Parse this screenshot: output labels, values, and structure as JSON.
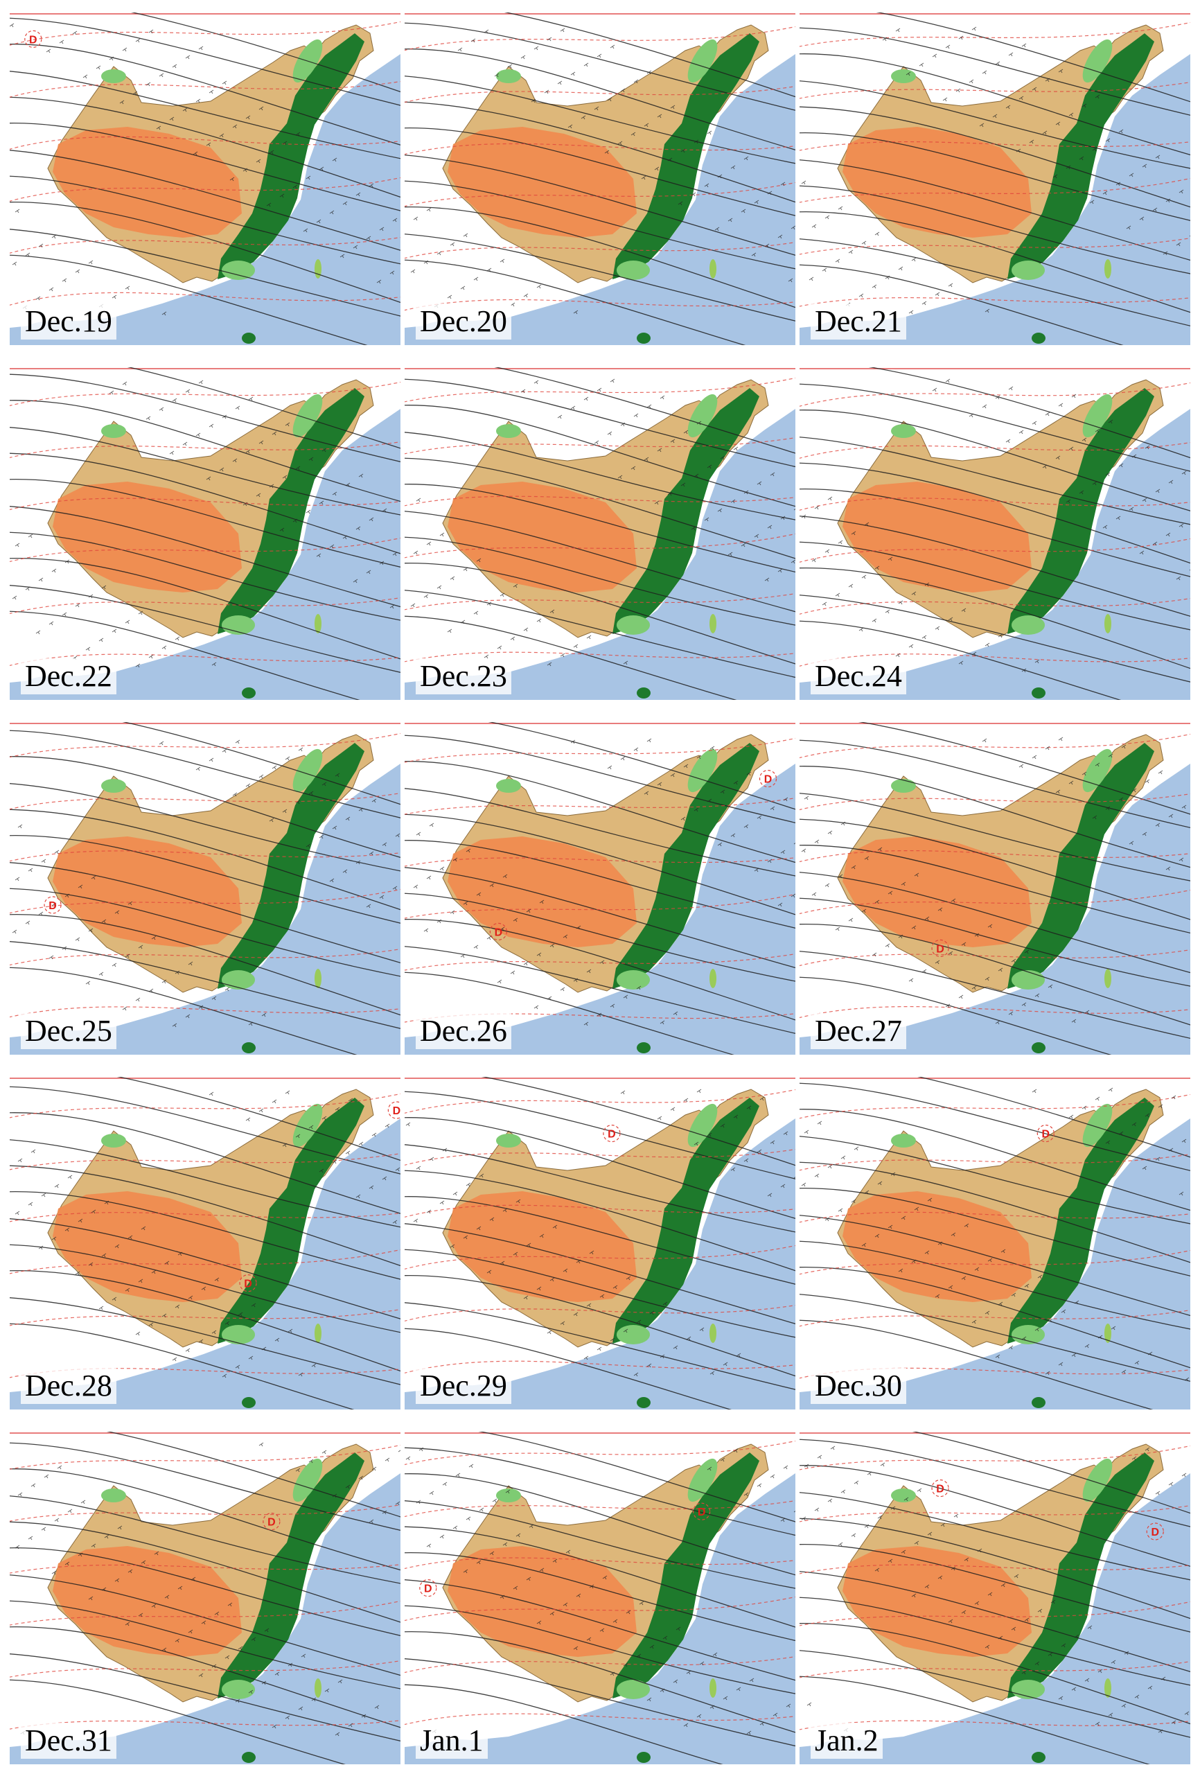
{
  "figure": {
    "panels": [
      {
        "label": "Dec.19",
        "lows": [
          [
            0.06,
            0.08
          ]
        ]
      },
      {
        "label": "Dec.20",
        "lows": []
      },
      {
        "label": "Dec.21",
        "lows": []
      },
      {
        "label": "Dec.22",
        "lows": []
      },
      {
        "label": "Dec.23",
        "lows": []
      },
      {
        "label": "Dec.24",
        "lows": []
      },
      {
        "label": "Dec.25",
        "lows": [
          [
            0.11,
            0.55
          ]
        ]
      },
      {
        "label": "Dec.26",
        "lows": [
          [
            0.93,
            0.17
          ],
          [
            0.24,
            0.63
          ]
        ]
      },
      {
        "label": "Dec.27",
        "lows": [
          [
            0.36,
            0.68
          ]
        ]
      },
      {
        "label": "Dec.28",
        "lows": [
          [
            0.99,
            0.1
          ],
          [
            0.61,
            0.62
          ]
        ]
      },
      {
        "label": "Dec.29",
        "lows": [
          [
            0.53,
            0.17
          ]
        ]
      },
      {
        "label": "Dec.30",
        "lows": [
          [
            0.63,
            0.17
          ]
        ]
      },
      {
        "label": "Dec.31",
        "lows": [
          [
            0.67,
            0.27
          ]
        ]
      },
      {
        "label": "Jan.1",
        "lows": [
          [
            0.06,
            0.47
          ],
          [
            0.76,
            0.24
          ]
        ]
      },
      {
        "label": "Jan.2",
        "lows": [
          [
            0.36,
            0.17
          ],
          [
            0.91,
            0.3
          ]
        ]
      }
    ],
    "low_marker": "D",
    "colors": {
      "sea": "#a8c4e4",
      "desert_orange": "#f08a4e",
      "steppe_tan": "#ddb77a",
      "forest_green": "#1e7a2c",
      "light_green": "#7ecb73",
      "isobar": "#1f1f1f",
      "isotherm": "#e0453c",
      "frame_line": "#e05050"
    }
  }
}
